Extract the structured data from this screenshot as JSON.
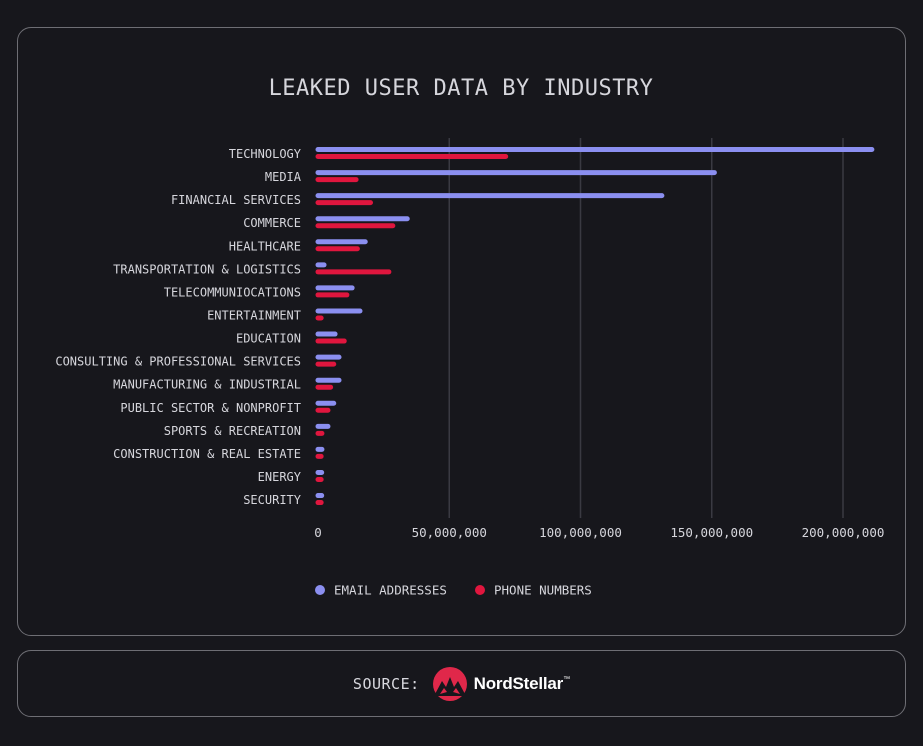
{
  "chart_data": {
    "type": "bar",
    "orientation": "horizontal",
    "title": "LEAKED USER DATA BY INDUSTRY",
    "categories": [
      "TECHNOLOGY",
      "MEDIA",
      "FINANCIAL SERVICES",
      "COMMERCE",
      "HEALTHCARE",
      "TRANSPORTATION & LOGISTICS",
      "TELECOMMUNIOCATIONS",
      "ENTERTAINMENT",
      "EDUCATION",
      "CONSULTING & PROFESSIONAL SERVICES",
      "MANUFACTURING & INDUSTRIAL",
      "PUBLIC SECTOR & NONPROFIT",
      "SPORTS & RECREATION",
      "CONSTRUCTION & REAL ESTATE",
      "ENERGY",
      "SECURITY"
    ],
    "series": [
      {
        "name": "EMAIL ADDRESSES",
        "color": "#8b8ff0",
        "values": [
          211000000,
          151000000,
          131000000,
          34000000,
          18000000,
          2300000,
          13000000,
          16000000,
          6500000,
          8000000,
          8000000,
          6000000,
          3800000,
          1500000,
          1400000,
          1400000
        ]
      },
      {
        "name": "PHONE NUMBERS",
        "color": "#e0163e",
        "values": [
          71500000,
          14500000,
          20000000,
          28500000,
          15000000,
          27000000,
          11000000,
          1200000,
          10000000,
          6000000,
          4800000,
          3800000,
          1500000,
          1200000,
          1200000,
          1200000
        ]
      }
    ],
    "xlim": [
      0,
      215000000
    ],
    "xticks": [
      0,
      50000000,
      100000000,
      150000000,
      200000000
    ],
    "xtick_labels": [
      "0",
      "50,000,000",
      "100,000,000",
      "150,000,000",
      "200,000,000"
    ],
    "grid": true,
    "legend_position": "bottom"
  },
  "footer": {
    "source_label": "SOURCE:",
    "brand": "NordStellar",
    "brand_mark": "™"
  }
}
